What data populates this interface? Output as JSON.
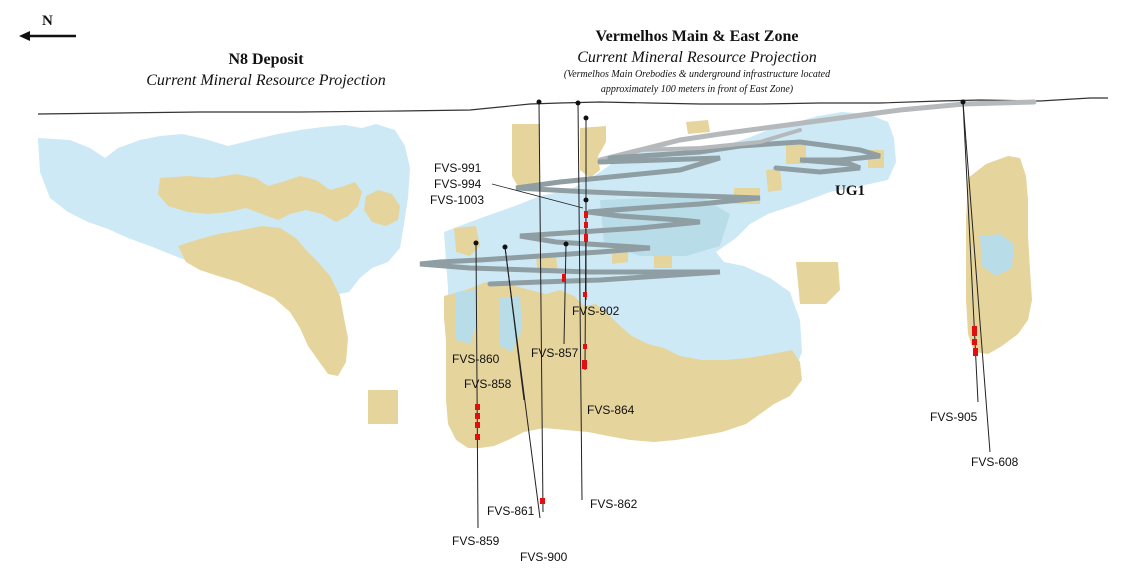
{
  "north_label": "N",
  "left_deposit": {
    "title": "N8 Deposit",
    "subtitle": "Current Mineral Resource Projection"
  },
  "right_deposit": {
    "title": "Vermelhos Main & East Zone",
    "subtitle": "Current Mineral Resource Projection",
    "note_line1": "(Vermelhos Main  Orebodies & underground infrastructure located",
    "note_line2": "approximately 100 meters in front of East Zone)"
  },
  "ug_label": "UG1",
  "drill_group_labels": [
    "FVS-991",
    "FVS-994",
    "FVS-1003"
  ],
  "drill_holes": [
    {
      "id": "fvs-860",
      "label": "FVS-860"
    },
    {
      "id": "fvs-858",
      "label": "FVS-858"
    },
    {
      "id": "fvs-859",
      "label": "FVS-859"
    },
    {
      "id": "fvs-861",
      "label": "FVS-861"
    },
    {
      "id": "fvs-900",
      "label": "FVS-900"
    },
    {
      "id": "fvs-857",
      "label": "FVS-857"
    },
    {
      "id": "fvs-902",
      "label": "FVS-902"
    },
    {
      "id": "fvs-864",
      "label": "FVS-864"
    },
    {
      "id": "fvs-862",
      "label": "FVS-862"
    },
    {
      "id": "fvs-905",
      "label": "FVS-905"
    },
    {
      "id": "fvs-608",
      "label": "FVS-608"
    }
  ],
  "colors": {
    "resource_projection": "#cde9f6",
    "orebody": "#e6d49d",
    "overlap": "#b9dde8",
    "underground_workings": "#8f9ea3",
    "intercept": "#e01010",
    "drill_trace": "#222222"
  }
}
